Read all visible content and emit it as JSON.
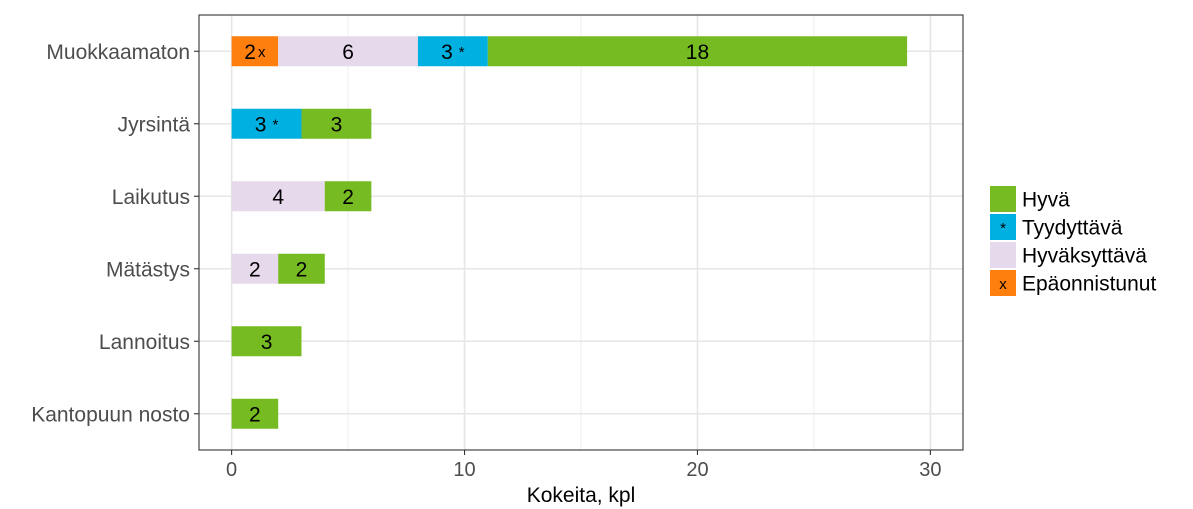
{
  "chart_data": {
    "type": "bar",
    "orientation": "horizontal",
    "stacked": true,
    "categories": [
      "Muokkaamaton",
      "Jyrsintä",
      "Laikutus",
      "Mätästys",
      "Lannoitus",
      "Kantopuun nosto"
    ],
    "stack_order": [
      "Epäonnistunut",
      "Hyväksyttävä",
      "Tyydyttävä",
      "Hyvä"
    ],
    "series": [
      {
        "name": "Hyvä",
        "marker": "",
        "color": "#77bb22",
        "values": [
          18,
          3,
          2,
          2,
          3,
          2
        ]
      },
      {
        "name": "Tyydyttävä",
        "marker": "*",
        "color": "#00b0e0",
        "values": [
          3,
          3,
          0,
          0,
          0,
          0
        ]
      },
      {
        "name": "Hyväksyttävä",
        "marker": "",
        "color": "#e6d9ec",
        "values": [
          6,
          0,
          4,
          2,
          0,
          0
        ]
      },
      {
        "name": "Epäonnistunut",
        "marker": "x",
        "color": "#ff7f0e",
        "values": [
          2,
          0,
          0,
          0,
          0,
          0
        ]
      }
    ],
    "xlabel": "Kokeita, kpl",
    "ylabel": "",
    "xlim": [
      -1.4,
      31.4
    ],
    "x_ticks": [
      0,
      10,
      20,
      30
    ],
    "grid": true,
    "legend_position": "right"
  }
}
